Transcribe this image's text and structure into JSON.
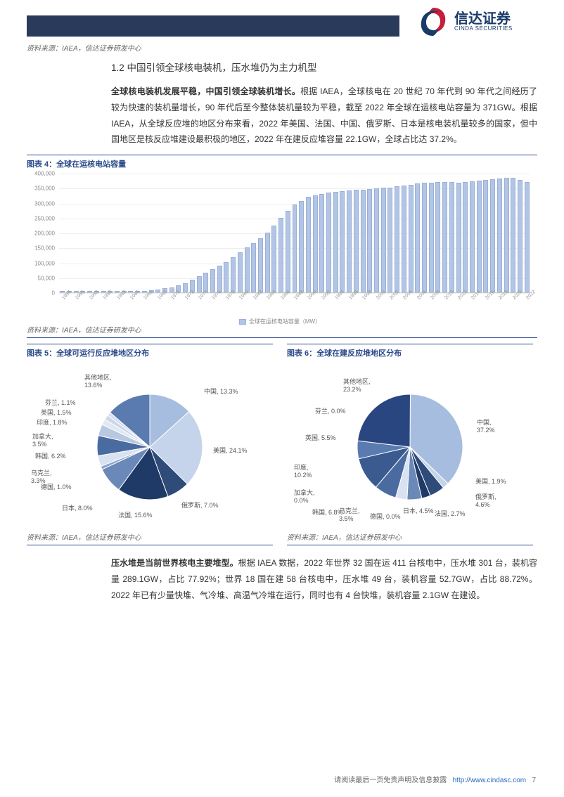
{
  "logo": {
    "cn": "信达证券",
    "en": "CINDA SECURITIES"
  },
  "source_line": "资料来源：IAEA，信达证券研发中心",
  "section_title": "1.2 中国引领全球核电装机，压水堆仍为主力机型",
  "para1_bold": "全球核电装机发展平稳，中国引领全球装机增长。",
  "para1_rest": "根据 IAEA，全球核电在 20 世纪 70 年代到 90 年代之间经历了较为快速的装机量增长，90 年代后至今整体装机量较为平稳，截至 2022 年全球在运核电站容量为 371GW。根据 IAEA，从全球反应堆的地区分布来看，2022 年美国、法国、中国、俄罗斯、日本是核电装机量较多的国家，但中国地区是核反应堆建设最积极的地区，2022 年在建反应堆容量 22.1GW，全球占比达 37.2%。",
  "chart4": {
    "title": "图表 4：全球在运核电站容量",
    "type": "bar",
    "ylabel_ticks": [
      0,
      50000,
      100000,
      150000,
      200000,
      250000,
      300000,
      350000,
      400000
    ],
    "ylim": [
      0,
      400000
    ],
    "years": [
      1954,
      1956,
      1958,
      1960,
      1962,
      1964,
      1966,
      1968,
      1970,
      1972,
      1974,
      1976,
      1978,
      1980,
      1982,
      1984,
      1986,
      1988,
      1990,
      1992,
      1994,
      1996,
      1998,
      2000,
      2002,
      2004,
      2006,
      2008,
      2010,
      2012,
      2014,
      2016,
      2018,
      2020,
      2022
    ],
    "values": [
      200,
      500,
      1000,
      1500,
      2500,
      4000,
      6000,
      10000,
      18000,
      32000,
      55000,
      78000,
      102000,
      135000,
      165000,
      200000,
      250000,
      295000,
      320000,
      330000,
      338000,
      342000,
      345000,
      348000,
      352000,
      358000,
      365000,
      368000,
      370000,
      368000,
      372000,
      378000,
      382000,
      385000,
      371000
    ],
    "bar_color": "#b3c5e5",
    "bar_border": "#9ab0d8",
    "grid_color": "#eeeeee",
    "legend": "全球在运核电站容量（MW）"
  },
  "chart5": {
    "title": "图表 5：全球可运行反应堆地区分布",
    "type": "pie",
    "slices": [
      {
        "label": "中国",
        "pct": 13.3,
        "color": "#a6bde0"
      },
      {
        "label": "美国",
        "pct": 24.1,
        "color": "#c5d4ea"
      },
      {
        "label": "俄罗斯",
        "pct": 7.0,
        "color": "#2e4b7a"
      },
      {
        "label": "法国",
        "pct": 15.6,
        "color": "#1f3a66"
      },
      {
        "label": "日本",
        "pct": 8.0,
        "color": "#6a89b8"
      },
      {
        "label": "德国",
        "pct": 1.0,
        "color": "#8aa5ce"
      },
      {
        "label": "乌克兰",
        "pct": 3.3,
        "color": "#d8e2f0"
      },
      {
        "label": "韩国",
        "pct": 6.2,
        "color": "#4a6ba0"
      },
      {
        "label": "加拿大",
        "pct": 3.5,
        "color": "#b8c8e0"
      },
      {
        "label": "印度",
        "pct": 1.8,
        "color": "#e0e8f3"
      },
      {
        "label": "英国",
        "pct": 1.5,
        "color": "#ccd8eb"
      },
      {
        "label": "芬兰",
        "pct": 1.1,
        "color": "#d5dff0"
      },
      {
        "label": "其他地区",
        "pct": 13.6,
        "color": "#5a7bb0"
      }
    ]
  },
  "chart6": {
    "title": "图表 6：全球在建反应堆地区分布",
    "type": "pie",
    "slices": [
      {
        "label": "中国",
        "pct": 37.2,
        "color": "#a6bde0"
      },
      {
        "label": "美国",
        "pct": 1.9,
        "color": "#c5d4ea"
      },
      {
        "label": "俄罗斯",
        "pct": 4.6,
        "color": "#2e4b7a"
      },
      {
        "label": "法国",
        "pct": 2.7,
        "color": "#1f3a66"
      },
      {
        "label": "日本",
        "pct": 4.5,
        "color": "#6a89b8"
      },
      {
        "label": "德国",
        "pct": 0.0,
        "color": "#8aa5ce"
      },
      {
        "label": "乌克兰",
        "pct": 3.5,
        "color": "#d8e2f0"
      },
      {
        "label": "韩国",
        "pct": 6.8,
        "color": "#4a6ba0"
      },
      {
        "label": "加拿大",
        "pct": 0.0,
        "color": "#b8c8e0"
      },
      {
        "label": "印度",
        "pct": 10.2,
        "color": "#3a5a90"
      },
      {
        "label": "英国",
        "pct": 5.5,
        "color": "#5a7bb0"
      },
      {
        "label": "芬兰",
        "pct": 0.0,
        "color": "#d5dff0"
      },
      {
        "label": "其他地区",
        "pct": 23.2,
        "color": "#2a4680"
      }
    ]
  },
  "para2_bold": "压水堆是当前世界核电主要堆型。",
  "para2_rest": "根据 IAEA 数据，2022 年世界 32 国在运 411 台核电中，压水堆 301 台，装机容量 289.1GW，占比 77.92%；世界 18 国在建 58 台核电中，压水堆 49 台，装机容量 52.7GW，占比 88.72%。2022 年已有少量快堆、气冷堆、高温气冷堆在运行，同时也有 4 台快堆，装机容量 2.1GW 在建设。",
  "footer_text": "请阅读最后一页免责声明及信息披露",
  "footer_url": "http://www.cindasc.com",
  "page_num": "7"
}
